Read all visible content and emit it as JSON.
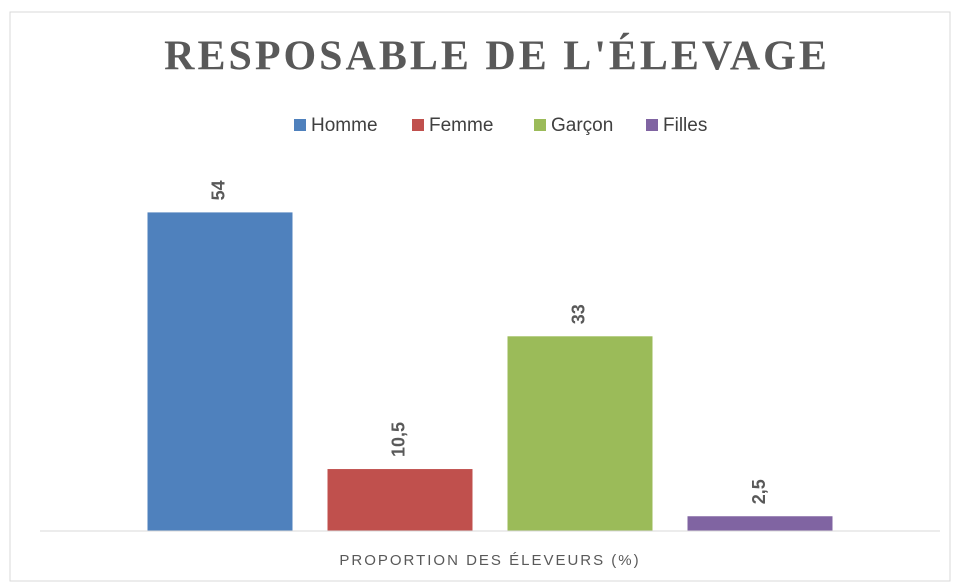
{
  "chart_data": {
    "type": "bar",
    "title": "RESPOSABLE DE L'ÉLEVAGE",
    "categories": [
      "PROPORTION DES ÉLEVEURS (%)"
    ],
    "series": [
      {
        "name": "Homme",
        "color": "#4f81bd",
        "values": [
          54
        ],
        "value_labels": [
          "54"
        ]
      },
      {
        "name": "Femme",
        "color": "#c0504d",
        "values": [
          10.5
        ],
        "value_labels": [
          "10,5"
        ]
      },
      {
        "name": "Garçon",
        "color": "#9bbb59",
        "values": [
          33
        ],
        "value_labels": [
          "33"
        ]
      },
      {
        "name": "Filles",
        "color": "#8064a2",
        "values": [
          2.5
        ],
        "value_labels": [
          "2,5"
        ]
      }
    ],
    "ylim": [
      0,
      60
    ],
    "legend": "top"
  }
}
